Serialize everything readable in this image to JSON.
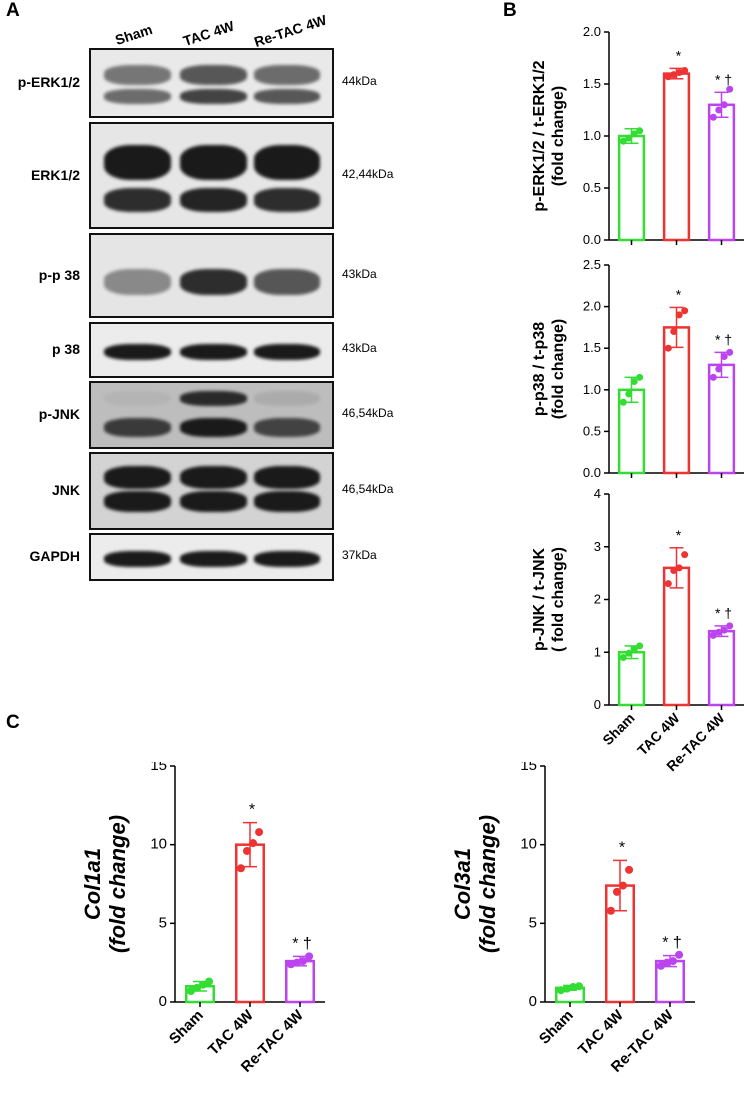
{
  "panels": {
    "a": "A",
    "b": "B",
    "c": "C"
  },
  "blot": {
    "columns": [
      "Sham",
      "TAC 4W",
      "Re-TAC 4W"
    ],
    "rows": [
      {
        "label": "p-ERK1/2",
        "kda": "44kDa",
        "bg": "#e9e9e9",
        "bands": [
          [
            0.22,
            0.28,
            [
              0.55,
              0.7,
              0.6
            ]
          ],
          [
            0.55,
            0.22,
            [
              0.6,
              0.8,
              0.7
            ]
          ]
        ]
      },
      {
        "label": "ERK1/2",
        "kda": "42,44kDa",
        "bg": "#e6e6e6",
        "bands": [
          [
            0.2,
            0.32,
            [
              1,
              1,
              1
            ]
          ],
          [
            0.6,
            0.22,
            [
              0.9,
              0.95,
              0.9
            ]
          ]
        ]
      },
      {
        "label": "p-p 38",
        "kda": "43kDa",
        "bg": "#e5e5e5",
        "bands": [
          [
            0.4,
            0.3,
            [
              0.45,
              0.9,
              0.7
            ]
          ]
        ]
      },
      {
        "label": "p 38",
        "kda": "43kDa",
        "bg": "#ececec",
        "bands": [
          [
            0.35,
            0.3,
            [
              1,
              1,
              1
            ]
          ]
        ]
      },
      {
        "label": "p-JNK",
        "kda": "46,54kDa",
        "bg": "#bdbdbd",
        "bands": [
          [
            0.12,
            0.22,
            [
              0.05,
              0.9,
              0.1
            ]
          ],
          [
            0.52,
            0.28,
            [
              0.8,
              1,
              0.75
            ]
          ]
        ]
      },
      {
        "label": "JNK",
        "kda": "46,54kDa",
        "bg": "#d3d3d3",
        "bands": [
          [
            0.15,
            0.3,
            [
              1,
              1,
              1
            ]
          ],
          [
            0.48,
            0.26,
            [
              1,
              1,
              1
            ]
          ]
        ]
      },
      {
        "label": "GAPDH",
        "kda": "37kDa",
        "bg": "#ececec",
        "bands": [
          [
            0.33,
            0.34,
            [
              1,
              1,
              1
            ]
          ]
        ]
      }
    ]
  },
  "chart_data": [
    {
      "type": "bar",
      "categories": [
        "Sham",
        "TAC 4W",
        "Re-TAC 4W"
      ],
      "values": [
        1.0,
        1.6,
        1.3
      ],
      "errors": [
        0.07,
        0.05,
        0.12
      ],
      "points": [
        [
          0.95,
          0.98,
          1.02,
          1.05
        ],
        [
          1.57,
          1.59,
          1.61,
          1.63
        ],
        [
          1.18,
          1.25,
          1.3,
          1.45
        ]
      ],
      "annotations": [
        "",
        "*",
        "* †"
      ],
      "ylabel": "p-ERK1/2 / t-ERK1/2",
      "ylabel2": "(fold change)",
      "ylim": [
        0,
        2.0
      ],
      "yticks": [
        "0.0",
        "0.5",
        "1.0",
        "1.5",
        "2.0"
      ],
      "show_xlabels": false,
      "colors": [
        "#33dd33",
        "#ee3333",
        "#bb44ee"
      ]
    },
    {
      "type": "bar",
      "categories": [
        "Sham",
        "TAC 4W",
        "Re-TAC 4W"
      ],
      "values": [
        1.0,
        1.75,
        1.3
      ],
      "errors": [
        0.15,
        0.24,
        0.15
      ],
      "points": [
        [
          0.85,
          0.95,
          1.1,
          1.15
        ],
        [
          1.5,
          1.7,
          1.9,
          1.95
        ],
        [
          1.15,
          1.25,
          1.4,
          1.45
        ]
      ],
      "annotations": [
        "",
        "*",
        "* †"
      ],
      "ylabel": "p-p38 / t-p38",
      "ylabel2": "(fold change)",
      "ylim": [
        0,
        2.5
      ],
      "yticks": [
        "0.0",
        "0.5",
        "1.0",
        "1.5",
        "2.0",
        "2.5"
      ],
      "show_xlabels": false,
      "colors": [
        "#33dd33",
        "#ee3333",
        "#bb44ee"
      ]
    },
    {
      "type": "bar",
      "categories": [
        "Sham",
        "TAC 4W",
        "Re-TAC 4W"
      ],
      "values": [
        1.0,
        2.6,
        1.4
      ],
      "errors": [
        0.12,
        0.38,
        0.1
      ],
      "points": [
        [
          0.9,
          0.98,
          1.05,
          1.12
        ],
        [
          2.3,
          2.55,
          2.6,
          2.85
        ],
        [
          1.32,
          1.38,
          1.42,
          1.5
        ]
      ],
      "annotations": [
        "",
        "*",
        "* †"
      ],
      "ylabel": "p-JNK / t-JNK",
      "ylabel2": "( fold change)",
      "ylim": [
        0,
        4
      ],
      "yticks": [
        "0",
        "1",
        "2",
        "3",
        "4"
      ],
      "show_xlabels": true,
      "colors": [
        "#33dd33",
        "#ee3333",
        "#bb44ee"
      ]
    },
    {
      "type": "bar",
      "categories": [
        "Sham",
        "TAC 4W",
        "Re-TAC 4W"
      ],
      "values": [
        1.0,
        10.0,
        2.6
      ],
      "errors": [
        0.3,
        1.4,
        0.3
      ],
      "points": [
        [
          0.7,
          0.9,
          1.1,
          1.3
        ],
        [
          8.5,
          9.6,
          10.1,
          10.8
        ],
        [
          2.4,
          2.5,
          2.6,
          2.9
        ]
      ],
      "annotations": [
        "",
        "*",
        "* †"
      ],
      "ylabel": "Col1a1",
      "ylabel2": "(fold change)",
      "ylabel_italic": true,
      "ylim": [
        0,
        15
      ],
      "yticks": [
        "0",
        "5",
        "10",
        "15"
      ],
      "show_xlabels": true,
      "colors": [
        "#33dd33",
        "#ee3333",
        "#bb44ee"
      ]
    },
    {
      "type": "bar",
      "categories": [
        "Sham",
        "TAC 4W",
        "Re-TAC 4W"
      ],
      "values": [
        0.9,
        7.4,
        2.6
      ],
      "errors": [
        0.15,
        1.6,
        0.35
      ],
      "points": [
        [
          0.75,
          0.85,
          0.95,
          1.0
        ],
        [
          5.8,
          7.0,
          7.4,
          8.4
        ],
        [
          2.3,
          2.5,
          2.6,
          3.0
        ]
      ],
      "annotations": [
        "",
        "*",
        "* †"
      ],
      "ylabel": "Col3a1",
      "ylabel2": "(fold change)",
      "ylabel_italic": true,
      "ylim": [
        0,
        15
      ],
      "yticks": [
        "0",
        "5",
        "10",
        "15"
      ],
      "show_xlabels": true,
      "colors": [
        "#33dd33",
        "#ee3333",
        "#bb44ee"
      ]
    }
  ]
}
